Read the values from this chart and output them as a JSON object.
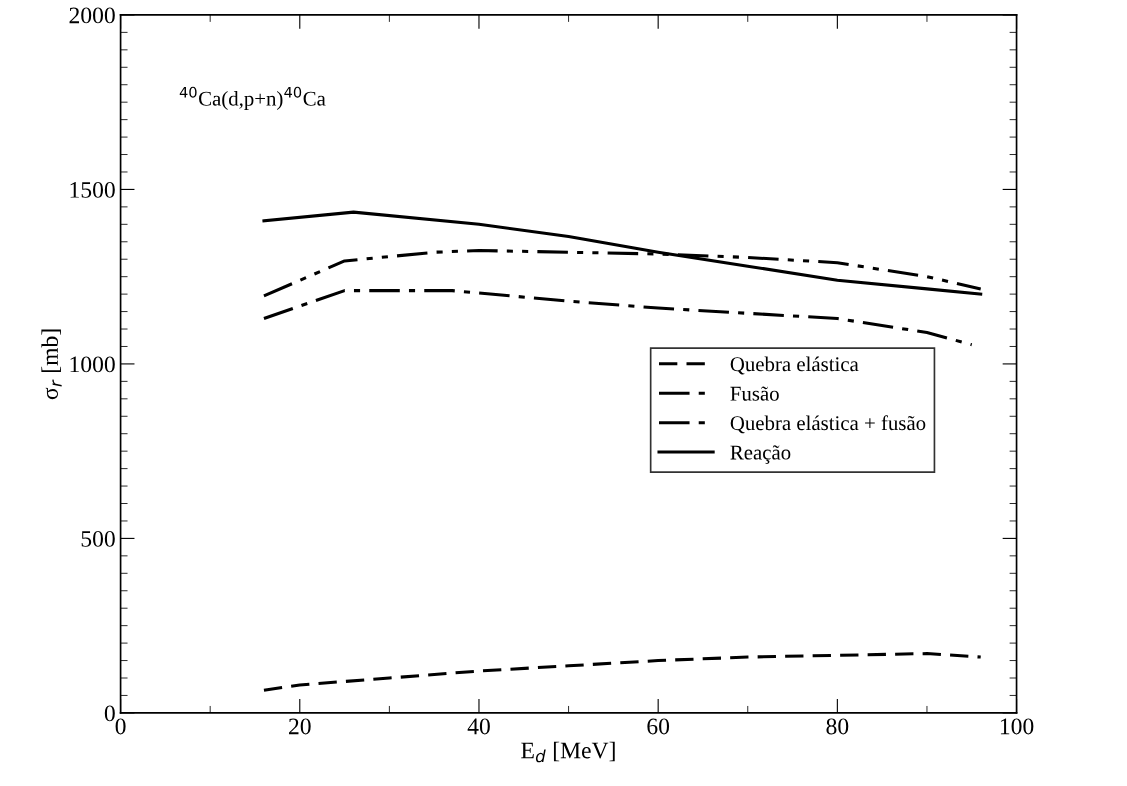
{
  "chart_data": {
    "type": "line",
    "xlabel": "E$_{d}$ [MeV]",
    "ylabel": "σ$_{r}$ [mb]",
    "annotations": [
      "$^{40}$Ca(d,p+n)$^{40}$Ca"
    ],
    "xlim": [
      0,
      100
    ],
    "xticks": [
      0,
      20,
      40,
      60,
      80,
      100
    ],
    "ylim": [
      0,
      2000
    ],
    "yticks": [
      0,
      500,
      1000,
      1500,
      2000
    ],
    "grid": false,
    "legend": "right",
    "marker": "none",
    "series": [
      {
        "name": "Quebra elástica",
        "color": "#000000",
        "line_style": "dashed",
        "x": [
          16,
          20,
          30,
          40,
          50,
          60,
          70,
          80,
          90,
          96
        ],
        "values": [
          65,
          80,
          100,
          120,
          135,
          150,
          160,
          165,
          170,
          160
        ]
      },
      {
        "name": "Fusão",
        "color": "#000000",
        "line_style": "dashdot",
        "x": [
          16,
          25,
          30,
          37,
          50,
          60,
          70,
          80,
          90,
          95
        ],
        "values": [
          1130,
          1210,
          1210,
          1210,
          1180,
          1160,
          1145,
          1130,
          1090,
          1055
        ]
      },
      {
        "name": "Quebra elástica + fusão",
        "color": "#000000",
        "line_style": "dashdotdot",
        "x": [
          16,
          25,
          35,
          40,
          50,
          60,
          70,
          80,
          90,
          96
        ],
        "values": [
          1195,
          1295,
          1320,
          1325,
          1320,
          1315,
          1305,
          1290,
          1250,
          1215
        ]
      },
      {
        "name": "Reação",
        "color": "#000000",
        "line_style": "solid",
        "x": [
          16,
          26,
          40,
          50,
          60,
          70,
          80,
          90,
          96
        ],
        "values": [
          1410,
          1435,
          1400,
          1365,
          1320,
          1280,
          1240,
          1215,
          1200
        ]
      }
    ]
  }
}
